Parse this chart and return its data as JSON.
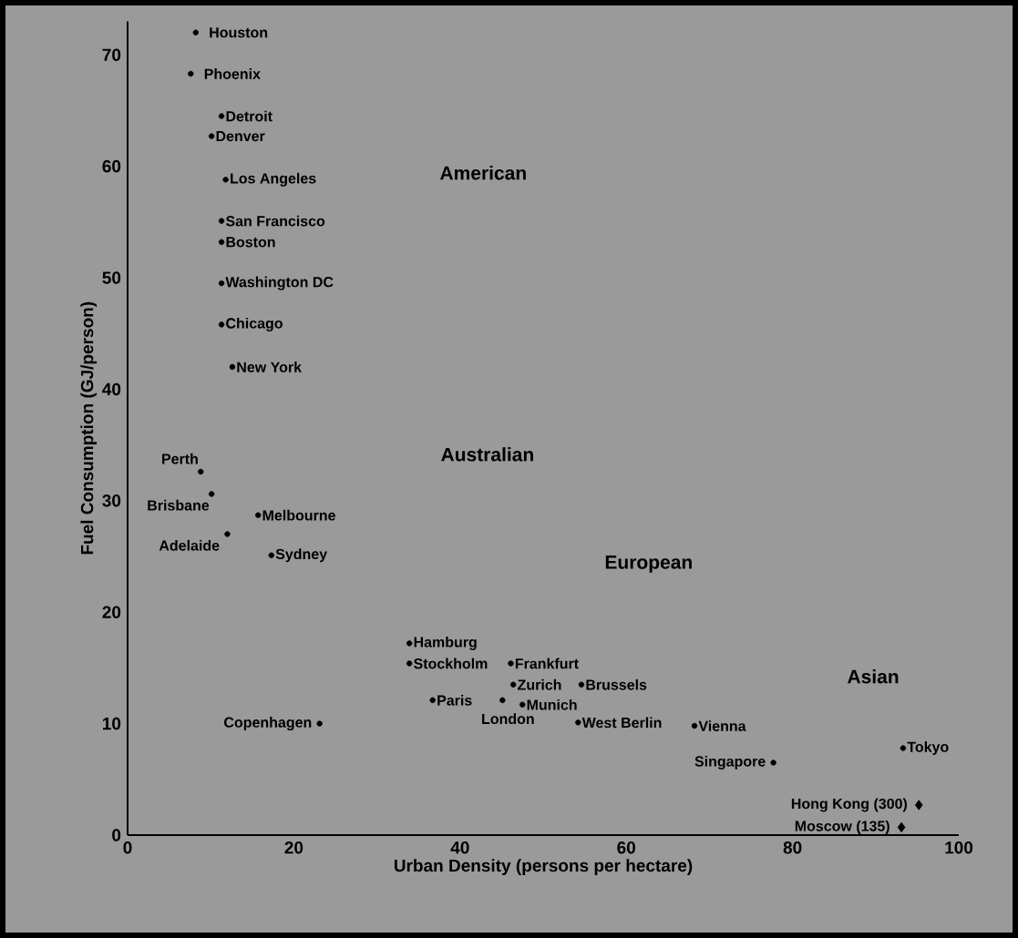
{
  "chart_data": {
    "type": "scatter",
    "xlabel": "Urban Density (persons per hectare)",
    "ylabel": "Fuel Consumption (GJ/person)",
    "xlim": [
      0,
      100
    ],
    "ylim": [
      0,
      73
    ],
    "xticks": [
      0,
      20,
      40,
      60,
      80,
      100
    ],
    "yticks": [
      0,
      10,
      20,
      30,
      40,
      50,
      60,
      70
    ],
    "series": [
      {
        "color": "#000000",
        "marker": "circle",
        "x": [
          8.2,
          7.6,
          11.3,
          10.1,
          11.8,
          11.3,
          11.3,
          11.3,
          11.3,
          12.6,
          8.8,
          10.1,
          15.7,
          12.0,
          17.3,
          23.1,
          33.9,
          33.9,
          46.1,
          46.4,
          54.6,
          36.7,
          45.1,
          47.5,
          54.2,
          68.2,
          77.7,
          93.3
        ],
        "values": [
          72,
          68.3,
          64.5,
          62.7,
          58.8,
          55.1,
          53.2,
          49.5,
          45.8,
          42.0,
          32.6,
          30.6,
          28.7,
          27.0,
          25.1,
          10.0,
          17.2,
          15.4,
          15.4,
          13.5,
          13.5,
          12.1,
          12.1,
          11.7,
          10.1,
          9.8,
          6.5,
          7.8
        ]
      },
      {
        "color": "#000000",
        "marker": "diamond",
        "x": [
          95.2,
          93.1
        ],
        "values": [
          2.7,
          0.7
        ]
      }
    ],
    "annotations": [
      {
        "text": "Houston",
        "x": 8.2,
        "y": 72
      },
      {
        "text": "Phoenix",
        "x": 7.6,
        "y": 68.3
      },
      {
        "text": "Detroit",
        "x": 11.3,
        "y": 64.5
      },
      {
        "text": "Denver",
        "x": 10.1,
        "y": 62.7
      },
      {
        "text": "Los Angeles",
        "x": 11.8,
        "y": 58.8
      },
      {
        "text": "San Francisco",
        "x": 11.3,
        "y": 55.1
      },
      {
        "text": "Boston",
        "x": 11.3,
        "y": 53.2
      },
      {
        "text": "Washington DC",
        "x": 11.3,
        "y": 49.5
      },
      {
        "text": "Chicago",
        "x": 11.3,
        "y": 45.8
      },
      {
        "text": "New York",
        "x": 12.6,
        "y": 42.0
      },
      {
        "text": "Perth",
        "x": 8.8,
        "y": 32.6
      },
      {
        "text": "Brisbane",
        "x": 10.1,
        "y": 30.6
      },
      {
        "text": "Melbourne",
        "x": 15.7,
        "y": 28.7
      },
      {
        "text": "Adelaide",
        "x": 12.0,
        "y": 27.0
      },
      {
        "text": "Sydney",
        "x": 17.3,
        "y": 25.1
      },
      {
        "text": "Copenhagen",
        "x": 23.1,
        "y": 10.0
      },
      {
        "text": "Hamburg",
        "x": 33.9,
        "y": 17.2
      },
      {
        "text": "Stockholm",
        "x": 33.9,
        "y": 15.4
      },
      {
        "text": "Frankfurt",
        "x": 46.1,
        "y": 15.4
      },
      {
        "text": "Zurich",
        "x": 46.4,
        "y": 13.5
      },
      {
        "text": "Brussels",
        "x": 54.6,
        "y": 13.5
      },
      {
        "text": "Paris",
        "x": 36.7,
        "y": 12.1
      },
      {
        "text": "London",
        "x": 45.1,
        "y": 12.1
      },
      {
        "text": "Munich",
        "x": 47.5,
        "y": 11.7
      },
      {
        "text": "West Berlin",
        "x": 54.2,
        "y": 10.1
      },
      {
        "text": "Vienna",
        "x": 68.2,
        "y": 9.8
      },
      {
        "text": "Singapore",
        "x": 77.7,
        "y": 6.5
      },
      {
        "text": "Tokyo",
        "x": 93.3,
        "y": 7.8
      },
      {
        "text": "Hong Kong (300)",
        "x": 95.2,
        "y": 2.7
      },
      {
        "text": "Moscow (135)",
        "x": 93.1,
        "y": 0.7
      },
      "American",
      "Australian",
      "European",
      "Asian"
    ]
  }
}
